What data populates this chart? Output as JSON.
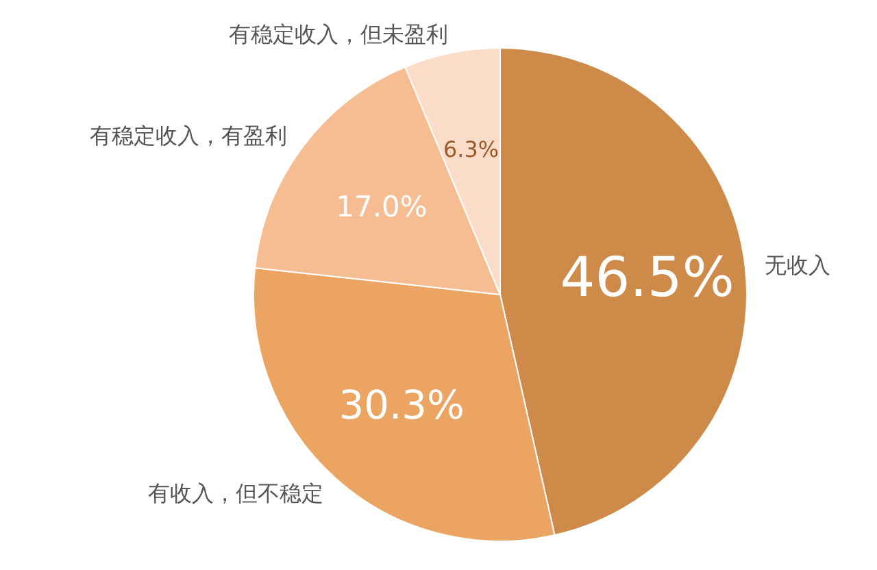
{
  "chart_data": {
    "type": "pie",
    "categories": [
      "无收入",
      "有收入，但不稳定",
      "有稳定收入，有盈利",
      "有稳定收入，但未盈利"
    ],
    "values": [
      46.5,
      30.3,
      17.0,
      6.3
    ],
    "colors": [
      "#cd8a48",
      "#eba462",
      "#f5bd91",
      "#fbdcc8"
    ],
    "value_labels": [
      "46.5%",
      "30.3%",
      "17.0%",
      "6.3%"
    ]
  }
}
